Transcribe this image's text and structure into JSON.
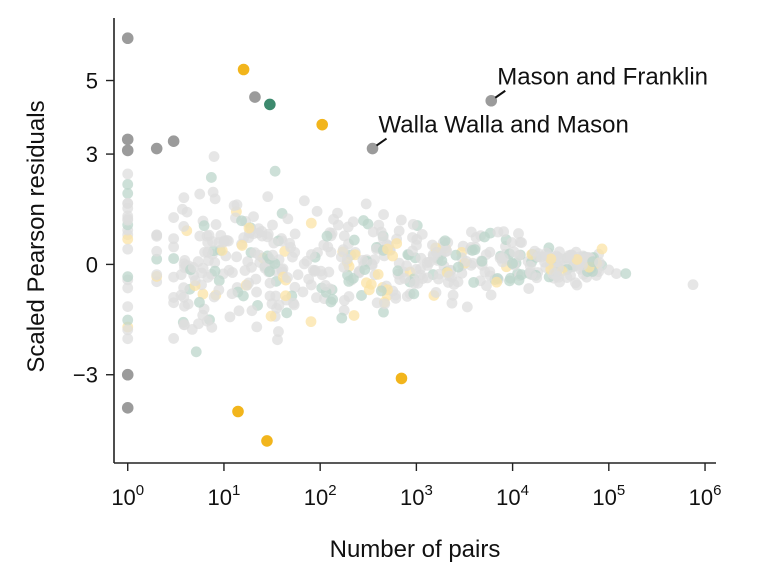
{
  "chart_data": {
    "type": "scatter",
    "title": "",
    "xlabel": "Number of pairs",
    "ylabel": "Scaled Pearson residuals",
    "x_scale": "log",
    "xlim": [
      0.72,
      1300000
    ],
    "ylim": [
      -5.4,
      6.7
    ],
    "x_ticks": [
      {
        "value": 1,
        "base": "10",
        "exp": "0"
      },
      {
        "value": 10,
        "base": "10",
        "exp": "1"
      },
      {
        "value": 100,
        "base": "10",
        "exp": "2"
      },
      {
        "value": 1000,
        "base": "10",
        "exp": "3"
      },
      {
        "value": 10000,
        "base": "10",
        "exp": "4"
      },
      {
        "value": 100000,
        "base": "10",
        "exp": "5"
      },
      {
        "value": 1000000,
        "base": "10",
        "exp": "6"
      }
    ],
    "y_ticks": [
      {
        "value": -3,
        "label": "−3"
      },
      {
        "value": 0,
        "label": "0"
      },
      {
        "value": 3,
        "label": "3"
      },
      {
        "value": 5,
        "label": "5"
      }
    ],
    "grid": false,
    "legend": "none",
    "colors": {
      "gray": "#9b9b9b",
      "green": "#3d8a6e",
      "yellow": "#f2b51c",
      "faint_gray": "#dddddd",
      "faint_green": "#bcd6cb",
      "faint_yellow": "#fbe3a6",
      "axis": "#222222"
    },
    "series": [
      {
        "group": "highlighted-gray",
        "color": "#9b9b9b",
        "points": [
          [
            1,
            6.15
          ],
          [
            1,
            3.4
          ],
          [
            1,
            3.1
          ],
          [
            1,
            -3.0
          ],
          [
            1,
            -3.9
          ],
          [
            2,
            3.15
          ],
          [
            3,
            3.35
          ],
          [
            21,
            4.55
          ],
          [
            350,
            3.15
          ],
          [
            6000,
            4.45
          ]
        ]
      },
      {
        "group": "highlighted-green",
        "color": "#3d8a6e",
        "points": [
          [
            30,
            4.35
          ]
        ]
      },
      {
        "group": "highlighted-yellow",
        "color": "#f2b51c",
        "points": [
          [
            16,
            5.3
          ],
          [
            105,
            3.8
          ],
          [
            700,
            -3.1
          ],
          [
            14,
            -4.0
          ],
          [
            28,
            -4.8
          ]
        ]
      }
    ],
    "annotations": [
      {
        "text": "Mason and Franklin",
        "x": 6000,
        "y": 4.45
      },
      {
        "text": "Walla Walla and Mason",
        "x": 350,
        "y": 3.15
      }
    ]
  }
}
